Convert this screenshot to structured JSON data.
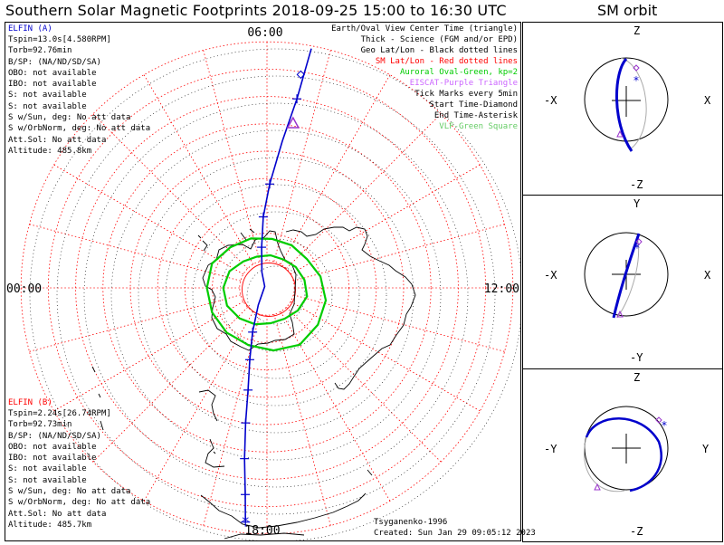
{
  "title": "Southern Solar Magnetic Footprints 2018-09-25 15:00 to 16:30 UTC",
  "orbit_title": "SM orbit",
  "colors": {
    "elfin_a": "#0000cc",
    "elfin_b": "#ff0000",
    "auroral": "#00cc00",
    "grid": "#ff0000",
    "triangle": "#9933cc",
    "vlf": "#66cc66"
  },
  "elfin_a": {
    "name": "ELFIN (A)",
    "lines": [
      "Tspin=13.0s[4.580RPM]",
      "Torb=92.76min",
      "B/SP: (NA/ND/SD/SA)",
      "OBO: not available",
      "IBO: not available",
      "S: not available",
      "S: not available",
      "S w/Sun, deg: No att data",
      "S w/OrbNorm, deg: No att data",
      "Att.Sol: No att data",
      "Altitude: 485.8km"
    ]
  },
  "elfin_b": {
    "name": "ELFIN (B)",
    "lines": [
      "Tspin=2.24s[26.74RPM]",
      "Torb=92.73min",
      "B/SP: (NA/ND/SD/SA)",
      "OBO: not available",
      "IBO: not available",
      "S: not available",
      "S: not available",
      "S w/Sun, deg: No att data",
      "S w/OrbNorm, deg: No att data",
      "Att.Sol: No att data",
      "Altitude: 485.7km"
    ]
  },
  "legend": {
    "black": [
      "Earth/Oval View Center Time (triangle)",
      "Thick - Science (FGM and/or EPD)",
      "Geo Lat/Lon - Black dotted lines"
    ],
    "red": "SM Lat/Lon - Red dotted lines",
    "green": "Auroral Oval-Green, kp=2",
    "purple": "EISCAT-Purple Triangle",
    "black2": [
      "Tick Marks every 5min",
      "Start Time-Diamond",
      "End Time-Asterisk"
    ],
    "vlf": "VLF-Green Square"
  },
  "footer": {
    "model": "Tsyganenko-1996",
    "created": "Created: Sun Jan 29 09:05:12 2023"
  },
  "chart_data": {
    "type": "polar-map",
    "hemisphere": "south",
    "frame": "SM MLT / magnetic latitude",
    "mlt_labels": [
      "06:00",
      "12:00",
      "18:00",
      "00:00"
    ],
    "lat_rings_deg": [
      80,
      70,
      60,
      50,
      40,
      30,
      20,
      10,
      0
    ],
    "mlt_spokes_hours": 24,
    "elfin_a_track": [
      [
        6.7,
        -1
      ],
      [
        6.6,
        -20
      ],
      [
        6.4,
        -36
      ],
      [
        6.1,
        -52
      ],
      [
        5.8,
        -64
      ],
      [
        5.5,
        -75
      ],
      [
        4.8,
        -84
      ],
      [
        2.2,
        -89
      ],
      [
        19.8,
        -83
      ],
      [
        19.2,
        -73
      ],
      [
        18.9,
        -63
      ],
      [
        18.7,
        -52
      ],
      [
        18.6,
        -40
      ],
      [
        18.5,
        -27
      ],
      [
        18.4,
        -14
      ],
      [
        18.35,
        -4
      ]
    ],
    "elfin_a_ticks": [
      [
        6.6,
        -20
      ],
      [
        6.1,
        -52
      ],
      [
        5.8,
        -64
      ],
      [
        5.5,
        -75
      ],
      [
        19.2,
        -73
      ],
      [
        18.9,
        -63
      ],
      [
        18.7,
        -52
      ],
      [
        18.6,
        -40
      ],
      [
        18.5,
        -27
      ],
      [
        18.4,
        -14
      ],
      [
        18.35,
        -4
      ]
    ],
    "elfin_a_start_time_mlt_lat": [
      6.6,
      -11
    ],
    "elfin_a_end_time_mlt_lat": [
      18.35,
      -4
    ],
    "view_center_triangle_mlt_lat": [
      6.6,
      -29
    ],
    "auroral_oval": {
      "kp": 2,
      "poleward_colat_deg": [
        16,
        15,
        13,
        12,
        12,
        12,
        13,
        14,
        15,
        14,
        13,
        13,
        14,
        15,
        16
      ],
      "equatorward_colat_deg": [
        22,
        22,
        20,
        19,
        18,
        18,
        18,
        20,
        22,
        23,
        24,
        23,
        22,
        22,
        22
      ]
    }
  },
  "orbit_panels": [
    {
      "axes": [
        "Z",
        "X",
        "-Z",
        "-X"
      ]
    },
    {
      "axes": [
        "Y",
        "X",
        "-Y",
        "-X"
      ]
    },
    {
      "axes": [
        "Z",
        "Y",
        "-Z",
        "-Y"
      ]
    }
  ]
}
